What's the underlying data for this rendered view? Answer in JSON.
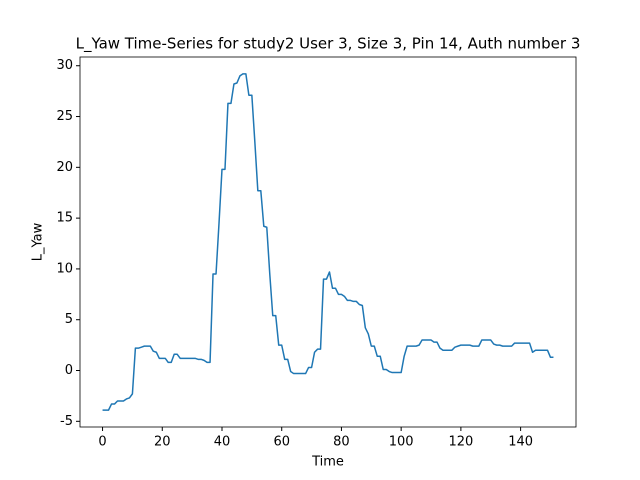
{
  "chart_data": {
    "type": "line",
    "title": "L_Yaw Time-Series for study2 User 3, Size 3, Pin 14, Auth number 3",
    "x_label": "Time",
    "y_label": "L_Yaw",
    "x": [
      0,
      1,
      2,
      3,
      4,
      5,
      6,
      7,
      8,
      9,
      10,
      11,
      12,
      13,
      14,
      15,
      16,
      17,
      18,
      19,
      20,
      21,
      22,
      23,
      24,
      25,
      26,
      27,
      28,
      29,
      30,
      31,
      32,
      33,
      34,
      35,
      36,
      37,
      38,
      39,
      40,
      41,
      42,
      43,
      44,
      45,
      46,
      47,
      48,
      49,
      50,
      51,
      52,
      53,
      54,
      55,
      56,
      57,
      58,
      59,
      60,
      61,
      62,
      63,
      64,
      65,
      66,
      67,
      68,
      69,
      70,
      71,
      72,
      73,
      74,
      75,
      76,
      77,
      78,
      79,
      80,
      81,
      82,
      83,
      84,
      85,
      86,
      87,
      88,
      89,
      90,
      91,
      92,
      93,
      94,
      95,
      96,
      97,
      98,
      99,
      100,
      101,
      102,
      103,
      104,
      105,
      106,
      107,
      108,
      109,
      110,
      111,
      112,
      113,
      114,
      115,
      116,
      117,
      118,
      119,
      120,
      121,
      122,
      123,
      124,
      125,
      126,
      127,
      128,
      129,
      130,
      131,
      132,
      133,
      134,
      135,
      136,
      137,
      138,
      139,
      140,
      141,
      142,
      143,
      144,
      145,
      146,
      147,
      148,
      149,
      150,
      151
    ],
    "series": [
      {
        "name": "L_Yaw",
        "color": "#1f77b4",
        "values": [
          -3.9,
          -3.9,
          -3.9,
          -3.3,
          -3.3,
          -3.0,
          -3.0,
          -3.0,
          -2.8,
          -2.7,
          -2.3,
          2.2,
          2.2,
          2.3,
          2.4,
          2.4,
          2.4,
          1.9,
          1.8,
          1.2,
          1.2,
          1.2,
          0.8,
          0.8,
          1.6,
          1.6,
          1.2,
          1.2,
          1.2,
          1.2,
          1.2,
          1.2,
          1.1,
          1.1,
          1.0,
          0.8,
          0.8,
          9.5,
          9.5,
          14.5,
          19.8,
          19.8,
          26.3,
          26.3,
          28.2,
          28.3,
          29.0,
          29.2,
          29.2,
          27.1,
          27.1,
          22.5,
          17.7,
          17.7,
          14.2,
          14.1,
          9.5,
          5.4,
          5.4,
          2.5,
          2.5,
          1.1,
          1.1,
          -0.1,
          -0.3,
          -0.3,
          -0.3,
          -0.3,
          -0.3,
          0.3,
          0.3,
          1.8,
          2.1,
          2.1,
          9.0,
          9.0,
          9.7,
          8.1,
          8.1,
          7.5,
          7.5,
          7.3,
          6.9,
          6.9,
          6.8,
          6.8,
          6.5,
          6.4,
          4.2,
          3.6,
          2.4,
          2.4,
          1.4,
          1.4,
          0.1,
          0.1,
          -0.1,
          -0.2,
          -0.2,
          -0.2,
          -0.2,
          1.4,
          2.4,
          2.4,
          2.4,
          2.4,
          2.5,
          3.0,
          3.0,
          3.0,
          3.0,
          2.8,
          2.8,
          2.2,
          2.0,
          2.0,
          2.0,
          2.0,
          2.3,
          2.4,
          2.5,
          2.5,
          2.5,
          2.5,
          2.4,
          2.4,
          2.4,
          3.0,
          3.0,
          3.0,
          3.0,
          2.6,
          2.5,
          2.5,
          2.4,
          2.4,
          2.4,
          2.4,
          2.7,
          2.7,
          2.7,
          2.7,
          2.7,
          2.7,
          1.8,
          2.0,
          2.0,
          2.0,
          2.0,
          2.0,
          1.3,
          1.3
        ]
      }
    ],
    "xlim": [
      -7.55,
      158.55
    ],
    "xticks": [
      0,
      20,
      40,
      60,
      80,
      100,
      120,
      140
    ],
    "ylim": [
      -5.56,
      30.86
    ],
    "yticks": [
      -5,
      0,
      5,
      10,
      15,
      20,
      25,
      30
    ],
    "grid": false
  }
}
